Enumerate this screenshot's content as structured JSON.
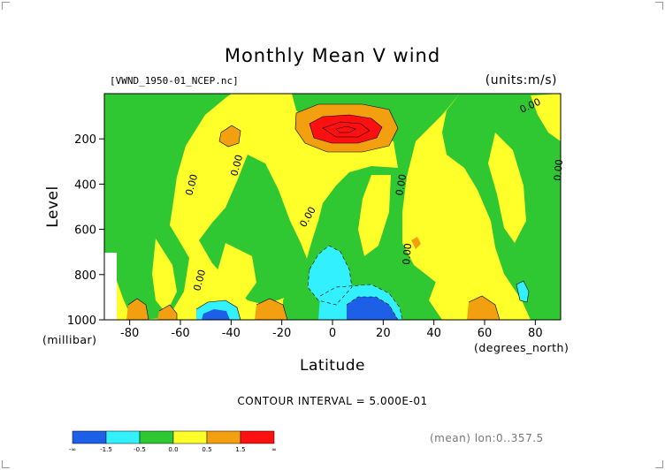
{
  "chart_data": {
    "type": "heatmap",
    "title": "Monthly Mean V wind",
    "subtitle_left": "[VWND_1950-01_NCEP.nc]",
    "subtitle_right": "(units:m/s)",
    "xlabel": "Latitude",
    "x_unit": "(degrees_north)",
    "ylabel": "Level",
    "y_unit": "(millibar)",
    "xlim": [
      -90,
      90
    ],
    "ylim": [
      1000,
      0
    ],
    "x_ticks": [
      -80,
      -60,
      -40,
      -20,
      0,
      20,
      40,
      60,
      80
    ],
    "y_ticks": [
      200,
      400,
      600,
      800,
      1000
    ],
    "contour_interval_text": "CONTOUR INTERVAL = 5.000E-01",
    "mean_text": "(mean) lon:0..357.5",
    "contour_labels": [
      "0.00"
    ],
    "colorbar": {
      "labels": [
        "-∞",
        "-1.5",
        "-0.5",
        "0.0",
        "0.5",
        "1.5",
        "∞"
      ],
      "colors": [
        "#1e5fe8",
        "#33f0ff",
        "#2fc832",
        "#ffff2a",
        "#f2a010",
        "#ff1010"
      ]
    },
    "regions": [
      {
        "name": "strong positive core",
        "x": [
          -5,
          28
        ],
        "y": [
          90,
          230
        ],
        "level": "red"
      },
      {
        "name": "strong negative core",
        "x": [
          5,
          30
        ],
        "y": [
          880,
          1000
        ],
        "level": "blue"
      },
      {
        "name": "negative region",
        "x": [
          -12,
          12
        ],
        "y": [
          700,
          930
        ],
        "level": "cyan"
      },
      {
        "name": "negative region",
        "x": [
          -52,
          -30
        ],
        "y": [
          880,
          1000
        ],
        "level": "cyan"
      },
      {
        "name": "negative region",
        "x": [
          73,
          79
        ],
        "y": [
          810,
          920
        ],
        "level": "cyan"
      }
    ]
  },
  "colors": {
    "blue": "#1e5fe8",
    "cyan": "#33f0ff",
    "green": "#2fc832",
    "yellow": "#ffff2a",
    "orange": "#f2a010",
    "red": "#ff1010"
  }
}
